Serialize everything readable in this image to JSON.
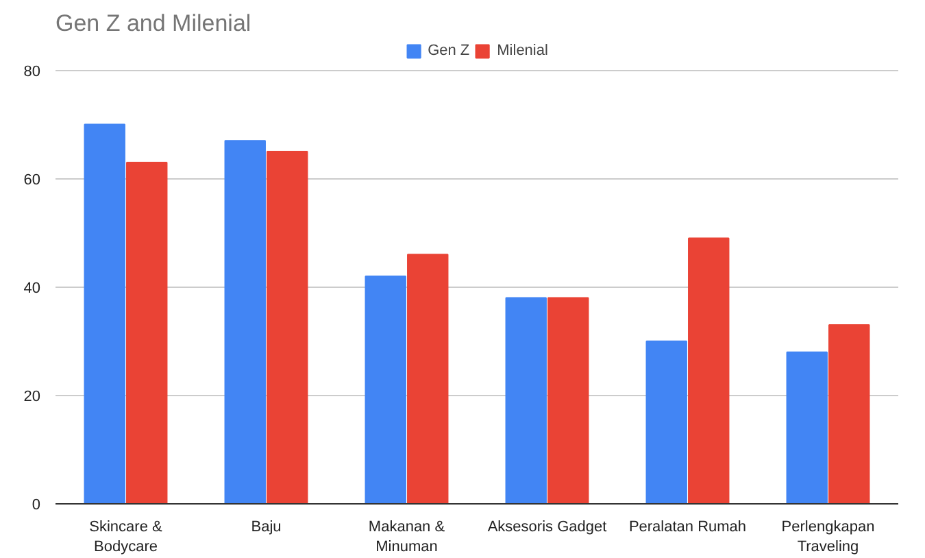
{
  "chart_data": {
    "type": "bar",
    "title": "Gen Z and Milenial",
    "categories": [
      "Skincare & Bodycare",
      "Baju",
      "Makanan & Minuman",
      "Aksesoris Gadget",
      "Peralatan Rumah",
      "Perlengkapan Traveling"
    ],
    "series": [
      {
        "name": "Gen Z",
        "color": "#4285f4",
        "values": [
          70,
          67,
          42,
          38,
          30,
          28
        ]
      },
      {
        "name": "Milenial",
        "color": "#ea4335",
        "values": [
          63,
          65,
          46,
          38,
          49,
          33
        ]
      }
    ],
    "ylim": [
      0,
      85
    ],
    "yticks": [
      0,
      20,
      40,
      60,
      80
    ],
    "grid": "y",
    "legend": "top"
  }
}
